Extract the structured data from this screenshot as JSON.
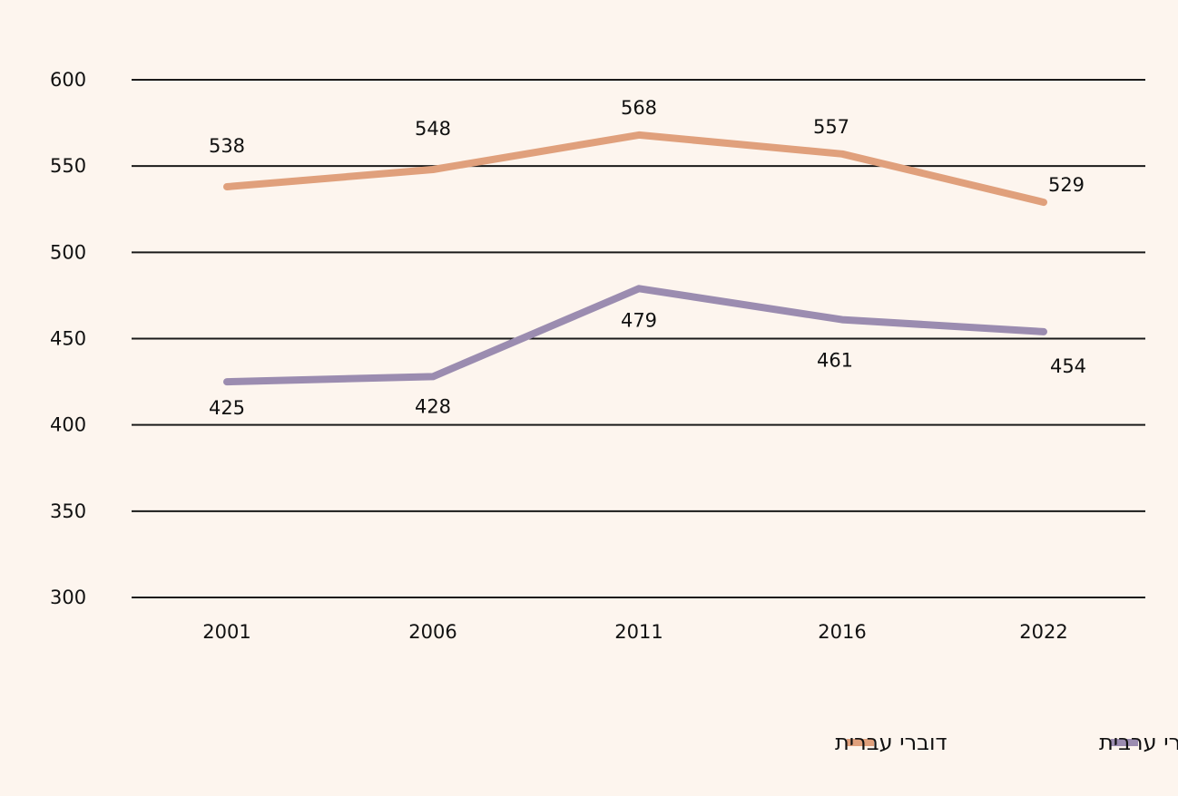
{
  "chart_data": {
    "type": "line",
    "title": "",
    "xlabel": "",
    "ylabel": "",
    "categories": [
      "2001",
      "2006",
      "2011",
      "2016",
      "2022"
    ],
    "ylim": [
      300,
      600
    ],
    "yticks": [
      "300",
      "350",
      "400",
      "450",
      "500",
      "550",
      "600"
    ],
    "grid": true,
    "legend_position": "bottom-right",
    "series": [
      {
        "name": "דוברי עברית",
        "color": "#e0a07c",
        "values": [
          538,
          548,
          568,
          557,
          529
        ],
        "labels": [
          "538",
          "548",
          "568",
          "557",
          "529"
        ]
      },
      {
        "name": "דוברי ערבית",
        "color": "#9b8cb0",
        "values": [
          425,
          428,
          479,
          461,
          454
        ],
        "labels": [
          "425",
          "428",
          "479",
          "461",
          "454"
        ]
      }
    ]
  }
}
